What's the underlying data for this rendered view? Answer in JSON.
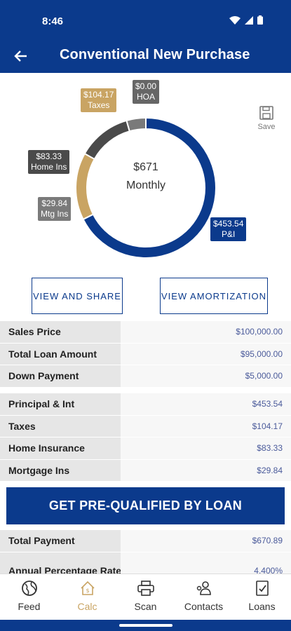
{
  "status": {
    "time": "8:46"
  },
  "header": {
    "title": "Conventional New Purchase"
  },
  "chart": {
    "center_amount": "$671",
    "center_label": "Monthly",
    "save_label": "Save",
    "tags": {
      "pi": {
        "amount": "$453.54",
        "label": "P&I"
      },
      "taxes": {
        "amount": "$104.17",
        "label": "Taxes"
      },
      "hoa": {
        "amount": "$0.00",
        "label": "HOA"
      },
      "home_ins": {
        "amount": "$83.33",
        "label": "Home Ins"
      },
      "mtg_ins": {
        "amount": "$29.84",
        "label": "Mtg Ins"
      }
    },
    "colors": {
      "pi": "#0b3a8c",
      "taxes": "#c9a463",
      "home_ins": "#4a4a4a",
      "mtg_ins": "#7a7a7a",
      "hoa": "#666666"
    }
  },
  "chart_data": {
    "type": "pie",
    "categories": [
      "P&I",
      "Taxes",
      "HOA",
      "Home Ins",
      "Mtg Ins"
    ],
    "values": [
      453.54,
      104.17,
      0.0,
      83.33,
      29.84
    ],
    "title": "$671 Monthly"
  },
  "buttons": {
    "view_share": "VIEW AND SHARE",
    "view_amortization": "VIEW AMORTIZATION",
    "prequal": "GET PRE-QUALIFIED BY LOAN"
  },
  "loan_table": [
    {
      "label": "Sales Price",
      "value": "$100,000.00"
    },
    {
      "label": "Total Loan Amount",
      "value": "$95,000.00"
    },
    {
      "label": "Down Payment",
      "value": "$5,000.00"
    }
  ],
  "payment_table": [
    {
      "label": "Principal & Int",
      "value": "$453.54"
    },
    {
      "label": "Taxes",
      "value": "$104.17"
    },
    {
      "label": "Home Insurance",
      "value": "$83.33"
    },
    {
      "label": "Mortgage Ins",
      "value": "$29.84"
    }
  ],
  "total_table": [
    {
      "label": "Total Payment",
      "value": "$670.89"
    },
    {
      "label": "Annual Percentage Rate",
      "value": "4.400%"
    }
  ],
  "nav": [
    {
      "label": "Feed",
      "icon": "globe-icon"
    },
    {
      "label": "Calc",
      "icon": "calc-house-icon"
    },
    {
      "label": "Scan",
      "icon": "printer-icon"
    },
    {
      "label": "Contacts",
      "icon": "contacts-icon"
    },
    {
      "label": "Loans",
      "icon": "document-check-icon"
    }
  ]
}
